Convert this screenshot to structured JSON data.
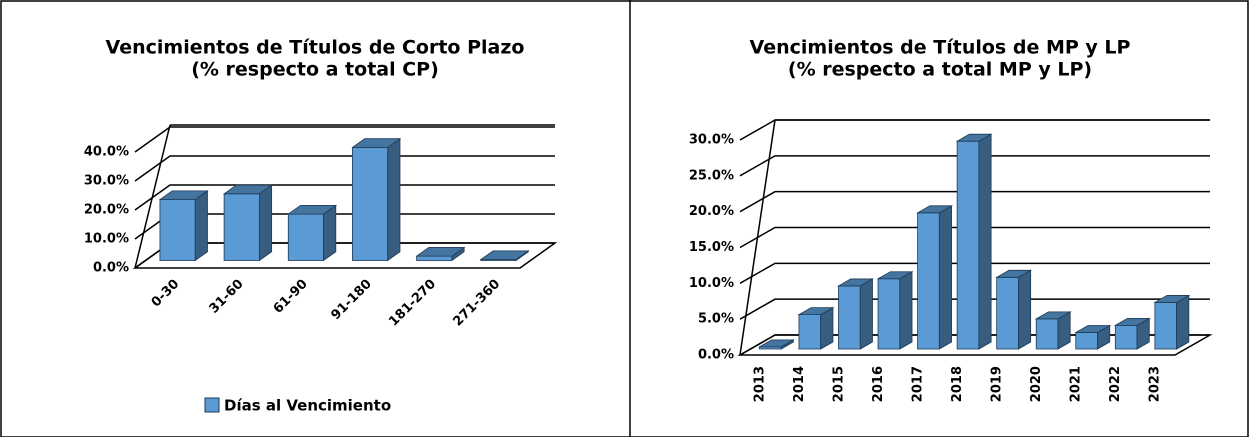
{
  "chart_data": [
    {
      "type": "bar3d",
      "title": [
        "Vencimientos de Títulos de Corto Plazo",
        "(% respecto a total CP)"
      ],
      "categories": [
        "0-30",
        "31-60",
        "61-90",
        "91-180",
        "181-270",
        "271-360"
      ],
      "series": [
        {
          "name": "Días al Vencimiento",
          "color": "#5b9bd5",
          "values": [
            21,
            23,
            16,
            39,
            1.5,
            0.3
          ]
        }
      ],
      "ylim": [
        0,
        40
      ],
      "yticks": [
        {
          "value": 0,
          "label": "0.0%"
        },
        {
          "value": 10,
          "label": "10.0%"
        },
        {
          "value": 20,
          "label": "20.0%"
        },
        {
          "value": 30,
          "label": "30.0%"
        },
        {
          "value": 40,
          "label": "40.0%"
        }
      ],
      "grid": true,
      "legend": "bottom"
    },
    {
      "type": "bar3d",
      "title": [
        "Vencimientos de Títulos de MP y LP",
        "(% respecto a total MP y LP)"
      ],
      "categories": [
        "2013",
        "2014",
        "2015",
        "2016",
        "2017",
        "2018",
        "2019",
        "2020",
        "2021",
        "2022",
        "2023"
      ],
      "series": [
        {
          "color": "#5b9bd5",
          "values": [
            0.3,
            4.8,
            8.8,
            9.8,
            19,
            29,
            10,
            4.2,
            2.3,
            3.3,
            6.5
          ]
        }
      ],
      "ylim": [
        0,
        30
      ],
      "yticks": [
        {
          "value": 0,
          "label": "0.0%"
        },
        {
          "value": 5,
          "label": "5.0%"
        },
        {
          "value": 10,
          "label": "10.0%"
        },
        {
          "value": 15,
          "label": "15.0%"
        },
        {
          "value": 20,
          "label": "20.0%"
        },
        {
          "value": 25,
          "label": "25.0%"
        },
        {
          "value": 30,
          "label": "30.0%"
        }
      ],
      "grid": true
    }
  ]
}
